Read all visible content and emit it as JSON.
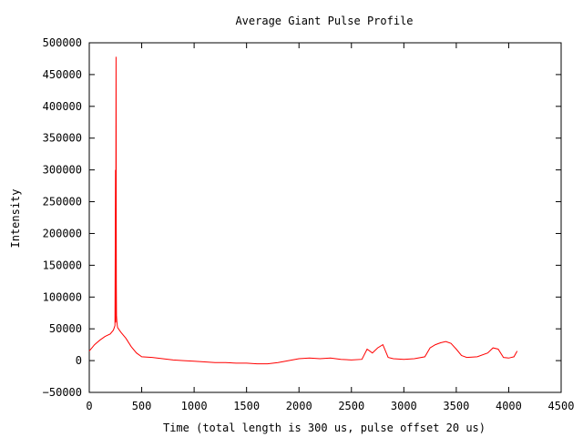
{
  "chart_data": {
    "type": "line",
    "title": "Average Giant Pulse Profile",
    "xlabel": "Time (total length is 300 us, pulse offset 20 us)",
    "ylabel": "Intensity",
    "xlim": [
      0,
      4500
    ],
    "ylim": [
      -50000,
      500000
    ],
    "x_ticks": [
      "0",
      "500",
      "1000",
      "1500",
      "2000",
      "2500",
      "3000",
      "3500",
      "4000",
      "4500"
    ],
    "y_ticks": [
      "500000",
      "450000",
      "400000",
      "350000",
      "300000",
      "250000",
      "200000",
      "150000",
      "100000",
      "50000",
      "0",
      "−50000"
    ],
    "grid": false,
    "legend": "none",
    "series": [
      {
        "color": "#ff0000",
        "x": [
          0,
          50,
          100,
          150,
          200,
          230,
          245,
          250,
          252,
          255,
          258,
          260,
          265,
          270,
          300,
          350,
          400,
          450,
          500,
          600,
          700,
          800,
          900,
          1000,
          1100,
          1200,
          1300,
          1400,
          1500,
          1600,
          1700,
          1800,
          1900,
          2000,
          2100,
          2200,
          2300,
          2400,
          2500,
          2600,
          2650,
          2700,
          2750,
          2800,
          2850,
          2900,
          3000,
          3100,
          3200,
          3250,
          3300,
          3350,
          3400,
          3450,
          3500,
          3550,
          3600,
          3700,
          3800,
          3850,
          3900,
          3950,
          4000,
          4050,
          4080
        ],
        "y": [
          15000,
          25000,
          32000,
          38000,
          42000,
          48000,
          55000,
          300000,
          60000,
          478000,
          120000,
          70000,
          58000,
          52000,
          45000,
          35000,
          22000,
          12000,
          6000,
          5000,
          3000,
          1000,
          0,
          -1000,
          -2000,
          -3000,
          -3000,
          -4000,
          -4000,
          -5000,
          -5000,
          -3000,
          0,
          3000,
          4000,
          3000,
          4000,
          2000,
          1000,
          2000,
          18000,
          12000,
          20000,
          25000,
          5000,
          3000,
          2000,
          3000,
          6000,
          20000,
          25000,
          28000,
          30000,
          27000,
          18000,
          8000,
          5000,
          6000,
          12000,
          20000,
          18000,
          5000,
          4000,
          6000,
          15000
        ]
      }
    ]
  }
}
